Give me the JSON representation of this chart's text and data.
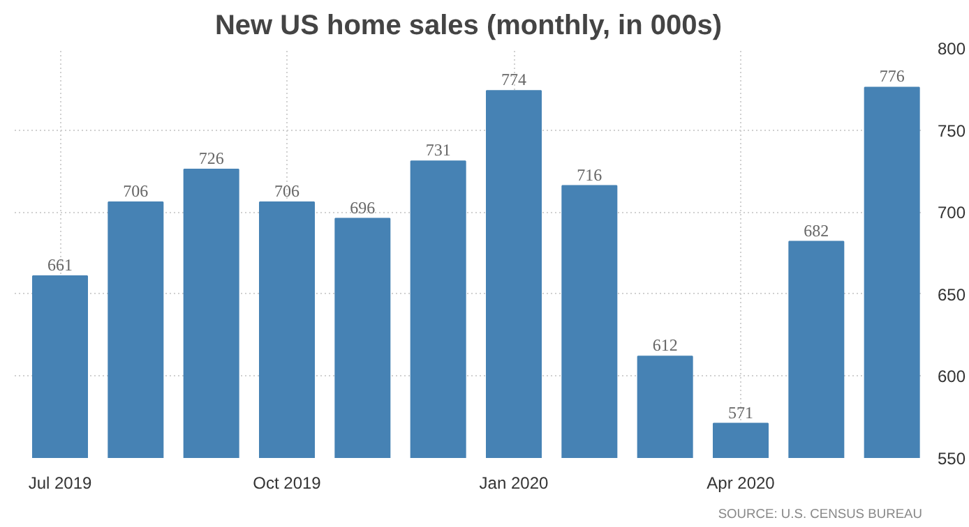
{
  "chart_data": {
    "type": "bar",
    "title": "New US home sales (monthly, in 000s)",
    "categories": [
      "Jul 2019",
      null,
      null,
      "Oct 2019",
      null,
      null,
      "Jan 2020",
      null,
      null,
      "Apr 2020",
      null,
      null
    ],
    "values": [
      661,
      706,
      726,
      706,
      696,
      731,
      774,
      716,
      612,
      571,
      682,
      776
    ],
    "color": "#4682b4",
    "ylim": [
      550,
      800
    ],
    "yticks": [
      550,
      600,
      650,
      700,
      750,
      800
    ],
    "grid": true,
    "data_labels": true,
    "annotations": [
      "SOURCE: U.S. CENSUS BUREAU"
    ]
  }
}
